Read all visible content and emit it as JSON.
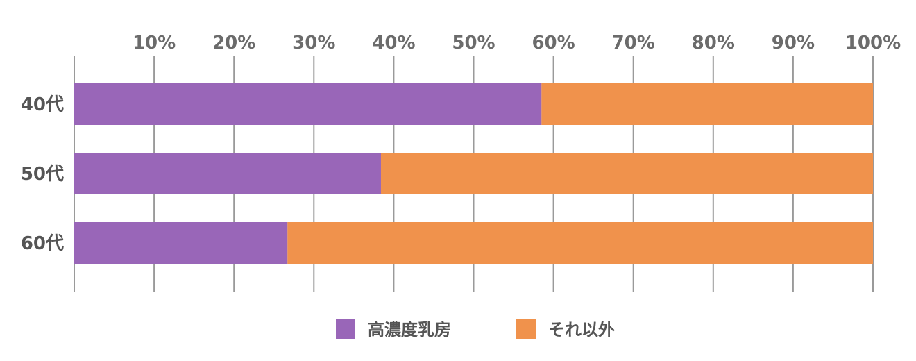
{
  "chart_data": {
    "type": "bar",
    "orientation": "horizontal",
    "stacked": true,
    "categories": [
      "40代",
      "50代",
      "60代"
    ],
    "series": [
      {
        "name": "高濃度乳房",
        "values": [
          58.5,
          38.4,
          26.7
        ],
        "color": "#9966b8"
      },
      {
        "name": "それ以外",
        "values": [
          41.5,
          61.6,
          73.3
        ],
        "color": "#f0924c"
      }
    ],
    "x_ticks": [
      "10%",
      "20%",
      "30%",
      "40%",
      "50%",
      "60%",
      "70%",
      "80%",
      "90%",
      "100%"
    ],
    "xlim": [
      0,
      100
    ],
    "x_tick_position": "top",
    "grid": true,
    "legend_position": "bottom-center"
  }
}
